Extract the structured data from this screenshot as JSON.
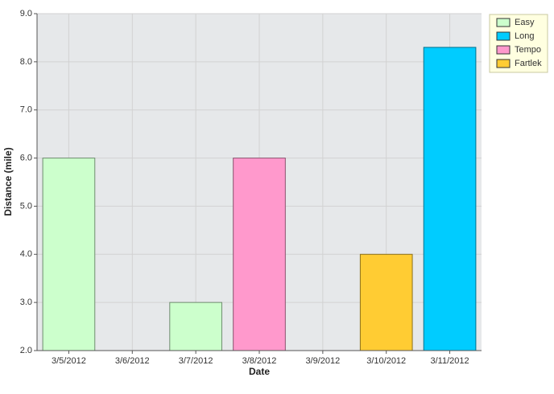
{
  "chart_data": {
    "type": "bar",
    "x_label": "Date",
    "y_label": "Distance (mile)",
    "categories": [
      "3/5/2012",
      "3/6/2012",
      "3/7/2012",
      "3/8/2012",
      "3/9/2012",
      "3/10/2012",
      "3/11/2012"
    ],
    "series": [
      {
        "name": "Easy",
        "color": "#ccffcc",
        "values": [
          6.0,
          null,
          3.0,
          null,
          null,
          null,
          null
        ]
      },
      {
        "name": "Long",
        "color": "#00ccff",
        "values": [
          null,
          null,
          null,
          null,
          null,
          null,
          8.3
        ]
      },
      {
        "name": "Tempo",
        "color": "#ff99cc",
        "values": [
          null,
          null,
          null,
          6.0,
          null,
          null,
          null
        ]
      },
      {
        "name": "Fartlek",
        "color": "#ffcc33",
        "values": [
          null,
          null,
          null,
          null,
          null,
          4.0,
          null
        ]
      }
    ],
    "ylim": [
      2,
      9
    ],
    "yticks": [
      {
        "value": 2,
        "label": "2.0"
      },
      {
        "value": 3,
        "label": "3.0"
      },
      {
        "value": 4,
        "label": "4.0"
      },
      {
        "value": 5,
        "label": "5.0"
      },
      {
        "value": 6,
        "label": "6.0"
      },
      {
        "value": 7,
        "label": "7.0"
      },
      {
        "value": 8,
        "label": "8.0"
      },
      {
        "value": 9,
        "label": "9.0"
      }
    ],
    "grid": true,
    "legend": "right"
  }
}
